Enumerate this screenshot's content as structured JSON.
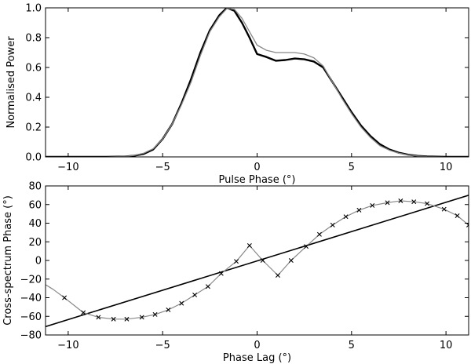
{
  "chart_data": [
    {
      "type": "line",
      "xlabel": "Pulse Phase (°)",
      "ylabel": "Normalised Power",
      "xlim": [
        -11.2,
        11.2
      ],
      "ylim": [
        0.0,
        1.0
      ],
      "xticks": [
        -10,
        -5,
        0,
        5,
        10
      ],
      "xtick_labels": [
        "−10",
        "−5",
        "0",
        "5",
        "10"
      ],
      "yticks": [
        0.0,
        0.2,
        0.4,
        0.6,
        0.8,
        1.0
      ],
      "ytick_labels": [
        "0.0",
        "0.2",
        "0.4",
        "0.6",
        "0.8",
        "1.0"
      ],
      "series": [
        {
          "style": "thick-black",
          "color": "#000000",
          "x": [
            -11.2,
            -8,
            -7,
            -6.5,
            -6,
            -5.5,
            -5,
            -4.5,
            -4,
            -3.5,
            -3,
            -2.5,
            -2,
            -1.6,
            -1.2,
            -0.8,
            -0.4,
            0,
            0.5,
            1,
            1.5,
            2,
            2.5,
            3,
            3.5,
            4,
            4.5,
            5,
            5.5,
            6,
            6.5,
            7,
            7.5,
            8,
            8.5,
            9,
            10,
            11.2
          ],
          "y": [
            0.0,
            0.0,
            0.002,
            0.008,
            0.02,
            0.05,
            0.12,
            0.22,
            0.36,
            0.52,
            0.7,
            0.85,
            0.95,
            1.0,
            0.98,
            0.9,
            0.8,
            0.69,
            0.67,
            0.645,
            0.65,
            0.66,
            0.655,
            0.64,
            0.6,
            0.5,
            0.4,
            0.3,
            0.21,
            0.14,
            0.085,
            0.05,
            0.028,
            0.015,
            0.007,
            0.003,
            0.0,
            0.0
          ]
        },
        {
          "style": "thin-gray",
          "color": "#888888",
          "x": [
            -11.2,
            -8,
            -7,
            -6.5,
            -6,
            -5.5,
            -5,
            -4.5,
            -4,
            -3.5,
            -3,
            -2.5,
            -2,
            -1.6,
            -1.2,
            -0.8,
            -0.4,
            0,
            0.5,
            1,
            1.5,
            2,
            2.5,
            3,
            3.5,
            4,
            4.5,
            5,
            5.5,
            6,
            6.5,
            7,
            7.5,
            8,
            8.5,
            9,
            10,
            11.2
          ],
          "y": [
            0.0,
            0.0,
            0.003,
            0.01,
            0.025,
            0.055,
            0.12,
            0.22,
            0.35,
            0.5,
            0.68,
            0.84,
            0.94,
            0.995,
            0.99,
            0.93,
            0.84,
            0.75,
            0.715,
            0.7,
            0.7,
            0.7,
            0.69,
            0.665,
            0.61,
            0.5,
            0.39,
            0.29,
            0.2,
            0.13,
            0.075,
            0.045,
            0.025,
            0.013,
            0.006,
            0.002,
            0.0,
            0.0
          ]
        }
      ]
    },
    {
      "type": "line",
      "xlabel": "Phase Lag (°)",
      "ylabel": "Cross-spectrum Phase (°)",
      "xlim": [
        -11.2,
        11.2
      ],
      "ylim": [
        -80,
        80
      ],
      "xticks": [
        -10,
        -5,
        0,
        5,
        10
      ],
      "xtick_labels": [
        "−10",
        "−5",
        "0",
        "5",
        "10"
      ],
      "yticks": [
        -80,
        -60,
        -40,
        -20,
        0,
        20,
        40,
        60,
        80
      ],
      "ytick_labels": [
        "−80",
        "−60",
        "−40",
        "−20",
        "0",
        "20",
        "40",
        "60",
        "80"
      ],
      "series": [
        {
          "style": "straight-black",
          "color": "#000000",
          "x": [
            -11.2,
            11.2
          ],
          "y": [
            -71,
            70
          ]
        },
        {
          "style": "gray-with-x-markers",
          "color": "#888888",
          "marker_color": "#000000",
          "x": [
            -11.2,
            -10.8,
            -10.2,
            -9.2,
            -8.4,
            -7.6,
            -6.9,
            -6.1,
            -5.4,
            -4.7,
            -4.0,
            -3.3,
            -2.6,
            -1.9,
            -1.1,
            -0.4,
            0.3,
            1.1,
            1.8,
            2.6,
            3.3,
            4.0,
            4.7,
            5.4,
            6.1,
            6.9,
            7.6,
            8.3,
            9.0,
            9.9,
            10.6,
            11.2
          ],
          "y": [
            -26,
            -31,
            -40,
            -56,
            -61,
            -63,
            -63,
            -61,
            -58,
            -53,
            -46,
            -37,
            -28,
            -14,
            -1,
            16,
            0,
            -16,
            0,
            15,
            28,
            38,
            47,
            54,
            59,
            62,
            64,
            63,
            61,
            55,
            48,
            38
          ],
          "marker_x": [
            -10.2,
            -9.2,
            -8.4,
            -7.6,
            -6.9,
            -6.1,
            -5.4,
            -4.7,
            -4.0,
            -3.3,
            -2.6,
            -1.9,
            -1.1,
            -0.4,
            0.3,
            1.1,
            1.8,
            2.6,
            3.3,
            4.0,
            4.7,
            5.4,
            6.1,
            6.9,
            7.6,
            8.3,
            9.0,
            9.9,
            10.6,
            11.2
          ],
          "marker_y": [
            -40,
            -56,
            -61,
            -63,
            -63,
            -61,
            -58,
            -53,
            -46,
            -37,
            -28,
            -14,
            -1,
            16,
            0,
            -16,
            0,
            15,
            28,
            38,
            47,
            54,
            59,
            62,
            64,
            63,
            61,
            55,
            48,
            38
          ]
        }
      ]
    }
  ]
}
